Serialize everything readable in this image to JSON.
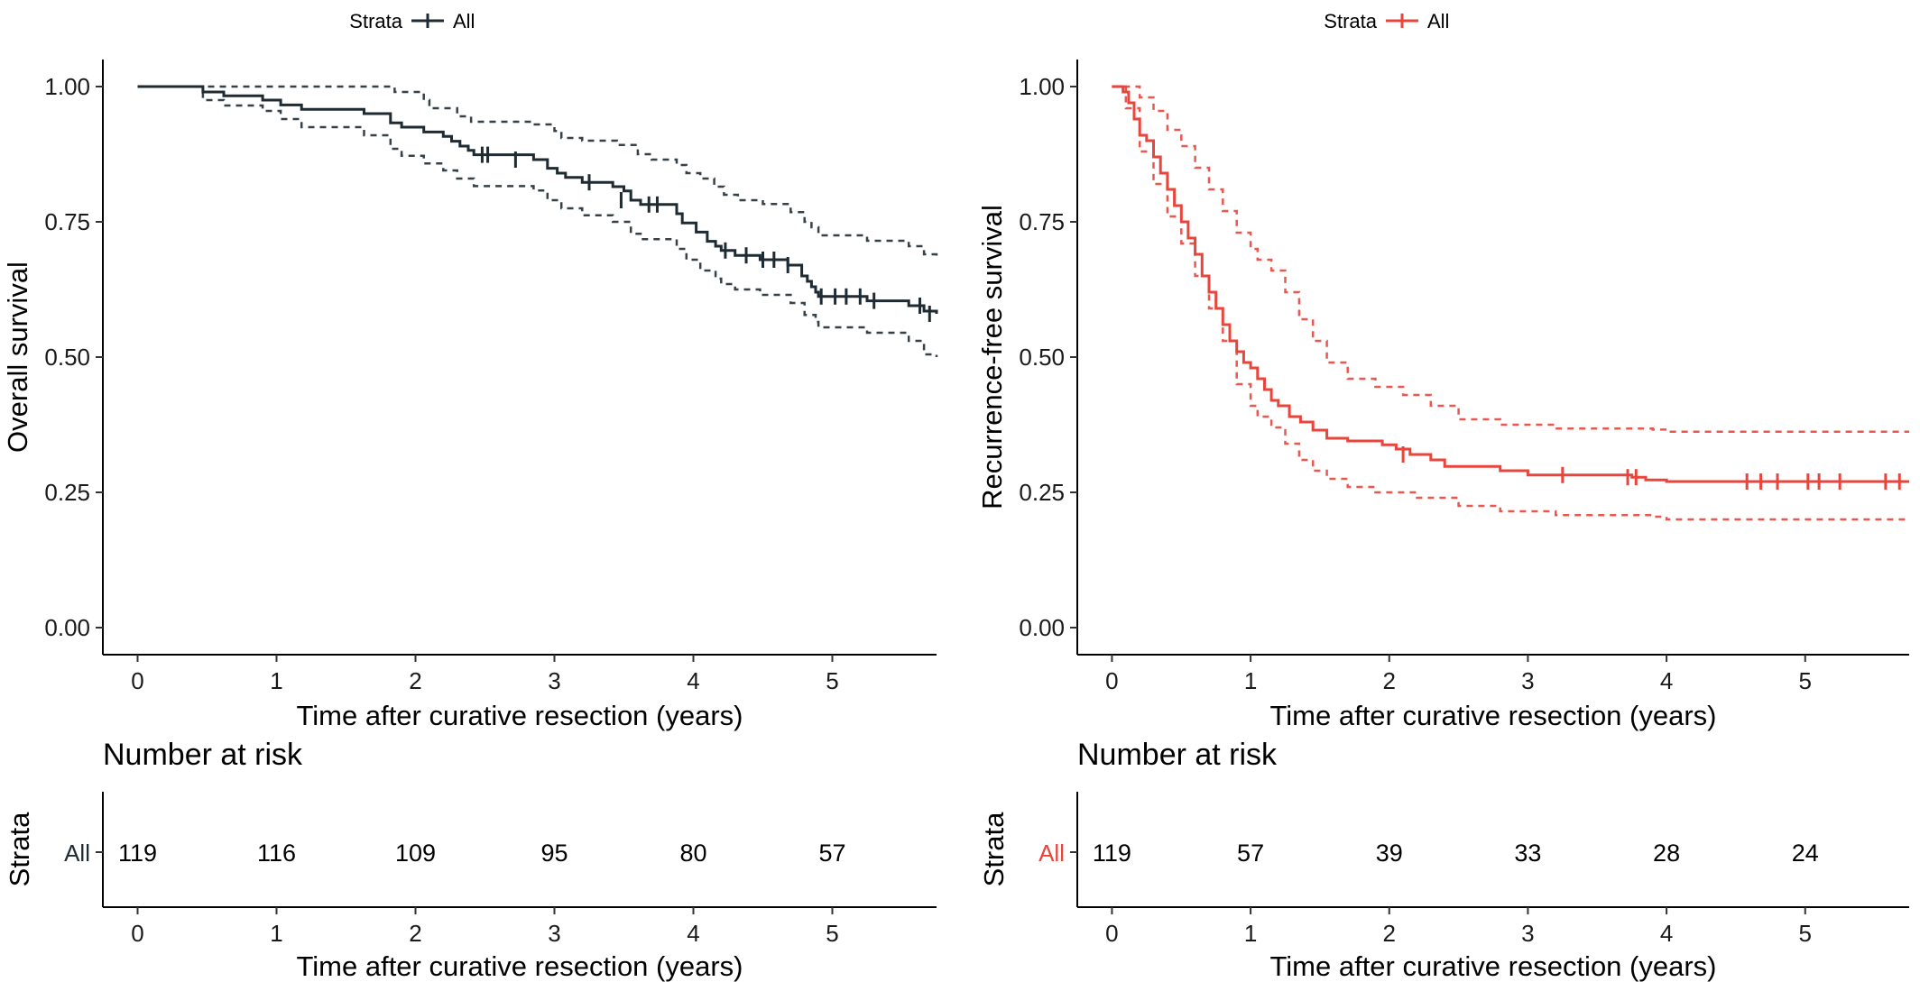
{
  "chart_data": [
    {
      "type": "line",
      "subtype": "kaplan-meier",
      "color": "#1f2b33",
      "legend": {
        "title": "Strata",
        "entries": [
          "All"
        ],
        "placement": "top"
      },
      "xlabel": "Time after curative resection (years)",
      "ylabel": "Overall survival",
      "xlim": [
        -0.25,
        5.75
      ],
      "ylim": [
        -0.05,
        1.05
      ],
      "x_ticks": [
        0,
        1,
        2,
        3,
        4,
        5
      ],
      "x_tick_labels": [
        "0",
        "1",
        "2",
        "3",
        "4",
        "5"
      ],
      "y_ticks": [
        0,
        0.25,
        0.5,
        0.75,
        1.0
      ],
      "y_tick_labels": [
        "0.00",
        "0.25",
        "0.50",
        "0.75",
        "1.00"
      ],
      "series": [
        {
          "name": "All",
          "role": "estimate",
          "style": "solid",
          "points": [
            [
              0,
              1.0
            ],
            [
              0.47,
              0.99
            ],
            [
              0.62,
              0.983
            ],
            [
              0.9,
              0.975
            ],
            [
              1.03,
              0.966
            ],
            [
              1.18,
              0.958
            ],
            [
              1.63,
              0.95
            ],
            [
              1.82,
              0.933
            ],
            [
              1.9,
              0.925
            ],
            [
              2.06,
              0.916
            ],
            [
              2.2,
              0.908
            ],
            [
              2.26,
              0.899
            ],
            [
              2.32,
              0.89
            ],
            [
              2.38,
              0.882
            ],
            [
              2.42,
              0.874
            ],
            [
              2.85,
              0.865
            ],
            [
              2.95,
              0.849
            ],
            [
              3.02,
              0.84
            ],
            [
              3.08,
              0.832
            ],
            [
              3.2,
              0.823
            ],
            [
              3.42,
              0.815
            ],
            [
              3.5,
              0.807
            ],
            [
              3.55,
              0.79
            ],
            [
              3.62,
              0.782
            ],
            [
              3.88,
              0.765
            ],
            [
              3.92,
              0.748
            ],
            [
              4.02,
              0.731
            ],
            [
              4.1,
              0.714
            ],
            [
              4.16,
              0.705
            ],
            [
              4.2,
              0.697
            ],
            [
              4.3,
              0.688
            ],
            [
              4.48,
              0.68
            ],
            [
              4.68,
              0.67
            ],
            [
              4.78,
              0.65
            ],
            [
              4.82,
              0.64
            ],
            [
              4.85,
              0.63
            ],
            [
              4.88,
              0.62
            ],
            [
              4.9,
              0.612
            ],
            [
              5.25,
              0.604
            ],
            [
              5.55,
              0.595
            ],
            [
              5.66,
              0.585
            ],
            [
              5.75,
              0.58
            ]
          ]
        },
        {
          "name": "upper 95% CI",
          "role": "ci",
          "style": "dashed",
          "points": [
            [
              0,
              1.0
            ],
            [
              0.47,
              1.0
            ],
            [
              1.8,
              1.0
            ],
            [
              1.85,
              0.99
            ],
            [
              2.06,
              0.975
            ],
            [
              2.1,
              0.96
            ],
            [
              2.3,
              0.945
            ],
            [
              2.4,
              0.935
            ],
            [
              2.85,
              0.93
            ],
            [
              3.0,
              0.918
            ],
            [
              3.05,
              0.905
            ],
            [
              3.2,
              0.9
            ],
            [
              3.45,
              0.892
            ],
            [
              3.6,
              0.875
            ],
            [
              3.7,
              0.865
            ],
            [
              3.88,
              0.855
            ],
            [
              3.95,
              0.84
            ],
            [
              4.05,
              0.83
            ],
            [
              4.15,
              0.815
            ],
            [
              4.22,
              0.8
            ],
            [
              4.32,
              0.79
            ],
            [
              4.5,
              0.783
            ],
            [
              4.7,
              0.768
            ],
            [
              4.8,
              0.75
            ],
            [
              4.85,
              0.74
            ],
            [
              4.9,
              0.725
            ],
            [
              5.25,
              0.715
            ],
            [
              5.55,
              0.705
            ],
            [
              5.66,
              0.69
            ],
            [
              5.75,
              0.683
            ]
          ]
        },
        {
          "name": "lower 95% CI",
          "role": "ci",
          "style": "dashed",
          "points": [
            [
              0,
              1.0
            ],
            [
              0.47,
              0.975
            ],
            [
              0.62,
              0.965
            ],
            [
              0.9,
              0.955
            ],
            [
              1.03,
              0.94
            ],
            [
              1.18,
              0.925
            ],
            [
              1.63,
              0.91
            ],
            [
              1.82,
              0.885
            ],
            [
              1.9,
              0.872
            ],
            [
              2.06,
              0.858
            ],
            [
              2.2,
              0.845
            ],
            [
              2.3,
              0.83
            ],
            [
              2.42,
              0.816
            ],
            [
              2.85,
              0.808
            ],
            [
              2.95,
              0.79
            ],
            [
              3.05,
              0.775
            ],
            [
              3.2,
              0.762
            ],
            [
              3.42,
              0.75
            ],
            [
              3.55,
              0.728
            ],
            [
              3.62,
              0.718
            ],
            [
              3.88,
              0.7
            ],
            [
              3.95,
              0.68
            ],
            [
              4.05,
              0.66
            ],
            [
              4.16,
              0.645
            ],
            [
              4.2,
              0.635
            ],
            [
              4.3,
              0.625
            ],
            [
              4.48,
              0.615
            ],
            [
              4.7,
              0.6
            ],
            [
              4.8,
              0.578
            ],
            [
              4.88,
              0.565
            ],
            [
              4.9,
              0.555
            ],
            [
              5.25,
              0.545
            ],
            [
              5.55,
              0.53
            ],
            [
              5.66,
              0.505
            ],
            [
              5.75,
              0.5
            ]
          ]
        }
      ],
      "censor_marks": [
        [
          2.48,
          0.874
        ],
        [
          2.52,
          0.874
        ],
        [
          2.72,
          0.865
        ],
        [
          3.25,
          0.823
        ],
        [
          3.48,
          0.79
        ],
        [
          3.68,
          0.782
        ],
        [
          3.74,
          0.782
        ],
        [
          4.23,
          0.697
        ],
        [
          4.38,
          0.688
        ],
        [
          4.5,
          0.68
        ],
        [
          4.58,
          0.68
        ],
        [
          4.68,
          0.67
        ],
        [
          4.92,
          0.612
        ],
        [
          5.02,
          0.612
        ],
        [
          5.1,
          0.612
        ],
        [
          5.2,
          0.612
        ],
        [
          5.3,
          0.604
        ],
        [
          5.63,
          0.595
        ],
        [
          5.7,
          0.58
        ]
      ],
      "risk_table": {
        "title": "Number at risk",
        "ylabel": "Strata",
        "strata_label": "All",
        "times": [
          0,
          1,
          2,
          3,
          4,
          5
        ],
        "counts": [
          "119",
          "116",
          "109",
          "95",
          "80",
          "57"
        ],
        "xlabel": "Time after curative resection (years)"
      }
    },
    {
      "type": "line",
      "subtype": "kaplan-meier",
      "color": "#e8453c",
      "legend": {
        "title": "Strata",
        "entries": [
          "All"
        ],
        "placement": "top"
      },
      "xlabel": "Time after curative resection (years)",
      "ylabel": "Recurrence-free survival",
      "xlim": [
        -0.25,
        5.75
      ],
      "ylim": [
        -0.05,
        1.05
      ],
      "x_ticks": [
        0,
        1,
        2,
        3,
        4,
        5
      ],
      "x_tick_labels": [
        "0",
        "1",
        "2",
        "3",
        "4",
        "5"
      ],
      "y_ticks": [
        0,
        0.25,
        0.5,
        0.75,
        1.0
      ],
      "y_tick_labels": [
        "0.00",
        "0.25",
        "0.50",
        "0.75",
        "1.00"
      ],
      "series": [
        {
          "name": "All",
          "role": "estimate",
          "style": "solid",
          "points": [
            [
              0,
              1.0
            ],
            [
              0.08,
              0.99
            ],
            [
              0.12,
              0.97
            ],
            [
              0.16,
              0.94
            ],
            [
              0.2,
              0.91
            ],
            [
              0.25,
              0.9
            ],
            [
              0.3,
              0.87
            ],
            [
              0.35,
              0.84
            ],
            [
              0.4,
              0.81
            ],
            [
              0.45,
              0.78
            ],
            [
              0.5,
              0.75
            ],
            [
              0.55,
              0.72
            ],
            [
              0.6,
              0.69
            ],
            [
              0.65,
              0.65
            ],
            [
              0.7,
              0.62
            ],
            [
              0.75,
              0.59
            ],
            [
              0.8,
              0.56
            ],
            [
              0.85,
              0.53
            ],
            [
              0.9,
              0.51
            ],
            [
              0.95,
              0.49
            ],
            [
              1.0,
              0.48
            ],
            [
              1.05,
              0.46
            ],
            [
              1.1,
              0.44
            ],
            [
              1.15,
              0.42
            ],
            [
              1.2,
              0.41
            ],
            [
              1.28,
              0.39
            ],
            [
              1.36,
              0.38
            ],
            [
              1.45,
              0.365
            ],
            [
              1.55,
              0.35
            ],
            [
              1.7,
              0.345
            ],
            [
              1.95,
              0.338
            ],
            [
              2.05,
              0.33
            ],
            [
              2.15,
              0.32
            ],
            [
              2.3,
              0.31
            ],
            [
              2.4,
              0.298
            ],
            [
              2.8,
              0.29
            ],
            [
              3.0,
              0.282
            ],
            [
              3.75,
              0.278
            ],
            [
              3.85,
              0.273
            ],
            [
              4.0,
              0.27
            ],
            [
              5.75,
              0.27
            ]
          ]
        },
        {
          "name": "upper 95% CI",
          "role": "ci",
          "style": "dashed",
          "points": [
            [
              0,
              1.0
            ],
            [
              0.12,
              1.0
            ],
            [
              0.2,
              0.98
            ],
            [
              0.3,
              0.955
            ],
            [
              0.4,
              0.92
            ],
            [
              0.5,
              0.89
            ],
            [
              0.6,
              0.85
            ],
            [
              0.7,
              0.81
            ],
            [
              0.8,
              0.77
            ],
            [
              0.9,
              0.73
            ],
            [
              1.0,
              0.7
            ],
            [
              1.05,
              0.68
            ],
            [
              1.15,
              0.66
            ],
            [
              1.25,
              0.62
            ],
            [
              1.35,
              0.57
            ],
            [
              1.45,
              0.53
            ],
            [
              1.55,
              0.49
            ],
            [
              1.7,
              0.46
            ],
            [
              1.9,
              0.445
            ],
            [
              2.1,
              0.43
            ],
            [
              2.3,
              0.41
            ],
            [
              2.5,
              0.385
            ],
            [
              2.8,
              0.375
            ],
            [
              3.2,
              0.368
            ],
            [
              3.9,
              0.366
            ],
            [
              4.0,
              0.362
            ],
            [
              5.75,
              0.362
            ]
          ]
        },
        {
          "name": "lower 95% CI",
          "role": "ci",
          "style": "dashed",
          "points": [
            [
              0,
              1.0
            ],
            [
              0.1,
              0.96
            ],
            [
              0.2,
              0.88
            ],
            [
              0.3,
              0.82
            ],
            [
              0.4,
              0.76
            ],
            [
              0.5,
              0.71
            ],
            [
              0.6,
              0.65
            ],
            [
              0.7,
              0.59
            ],
            [
              0.8,
              0.53
            ],
            [
              0.9,
              0.45
            ],
            [
              1.0,
              0.41
            ],
            [
              1.05,
              0.39
            ],
            [
              1.15,
              0.37
            ],
            [
              1.25,
              0.34
            ],
            [
              1.35,
              0.31
            ],
            [
              1.45,
              0.29
            ],
            [
              1.55,
              0.275
            ],
            [
              1.7,
              0.26
            ],
            [
              1.9,
              0.25
            ],
            [
              2.2,
              0.24
            ],
            [
              2.5,
              0.225
            ],
            [
              2.8,
              0.215
            ],
            [
              3.2,
              0.208
            ],
            [
              3.9,
              0.205
            ],
            [
              4.0,
              0.2
            ],
            [
              5.75,
              0.2
            ]
          ]
        }
      ],
      "censor_marks": [
        [
          2.1,
          0.32
        ],
        [
          3.25,
          0.282
        ],
        [
          3.72,
          0.278
        ],
        [
          3.78,
          0.278
        ],
        [
          4.58,
          0.27
        ],
        [
          4.68,
          0.27
        ],
        [
          4.8,
          0.27
        ],
        [
          5.02,
          0.27
        ],
        [
          5.1,
          0.27
        ],
        [
          5.25,
          0.27
        ],
        [
          5.58,
          0.27
        ],
        [
          5.68,
          0.27
        ]
      ],
      "risk_table": {
        "title": "Number at risk",
        "ylabel": "Strata",
        "strata_label": "All",
        "times": [
          0,
          1,
          2,
          3,
          4,
          5
        ],
        "counts": [
          "119",
          "57",
          "39",
          "33",
          "28",
          "24"
        ],
        "xlabel": "Time after curative resection (years)"
      }
    }
  ]
}
